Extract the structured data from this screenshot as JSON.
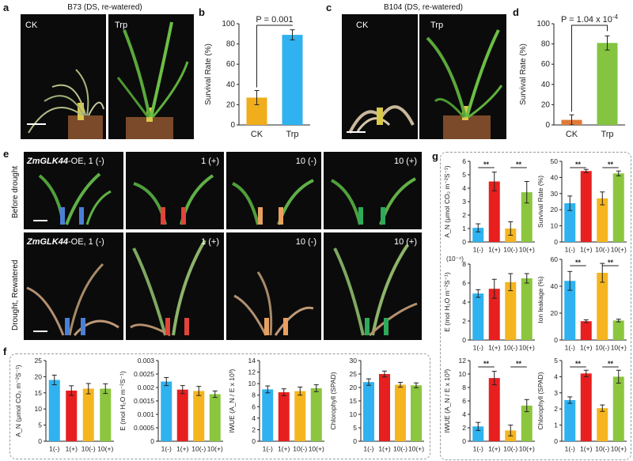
{
  "colors": {
    "ck": "#f0ad1c",
    "trp": "#2fb2ef",
    "d_ck": "#e07a3a",
    "d_trp": "#84c441",
    "s1m": "#2fb2ef",
    "s1p": "#e81f1f",
    "s10m": "#f5b51e",
    "s10p": "#8cc63f"
  },
  "panel_a": {
    "letter": "a",
    "title": "B73 (DS, re-watered)",
    "left_label": "CK",
    "right_label": "Trp"
  },
  "panel_c": {
    "letter": "c",
    "title": "B104 (DS, re-watered)",
    "left_label": "CK",
    "right_label": "Trp"
  },
  "panel_e": {
    "letter": "e",
    "row_labels": [
      "Before drought",
      "Drought, Rewatered"
    ],
    "genotype": "ZmGLK44",
    "suffix": "-OE, 1 (-)",
    "top_labels": [
      "1 (+)",
      "10 (-)",
      "10 (+)"
    ],
    "bottom_labels": [
      "1 (+)",
      "10 (-)",
      "10 (+)"
    ]
  },
  "panel_f_letter": "f",
  "panel_g_letter": "g",
  "chart_data": [
    {
      "id": "b",
      "letter": "b",
      "type": "bar",
      "categories": [
        "CK",
        "Trp"
      ],
      "values": [
        27,
        89
      ],
      "errors": [
        7,
        5
      ],
      "ylim": [
        0,
        100
      ],
      "yticks": [
        0,
        20,
        40,
        60,
        80,
        100
      ],
      "ylabel": "Survival Rate (%)",
      "annotation": "P = 0.001",
      "sig": true,
      "colors": [
        "#f0ad1c",
        "#2fb2ef"
      ]
    },
    {
      "id": "d",
      "letter": "d",
      "type": "bar",
      "categories": [
        "CK",
        "Trp"
      ],
      "values": [
        5,
        81
      ],
      "errors": [
        5,
        7
      ],
      "ylim": [
        0,
        100
      ],
      "yticks": [
        0,
        20,
        40,
        60,
        80,
        100
      ],
      "ylabel": "Survival Rate (%)",
      "annotation": "P = 1.04 x 10",
      "annotation_exp": "-4",
      "sig": true,
      "colors": [
        "#e07a3a",
        "#84c441"
      ]
    },
    {
      "id": "f1",
      "type": "bar",
      "categories": [
        "1(-)",
        "1(+)",
        "10(-)",
        "10(+)"
      ],
      "values": [
        19,
        15.7,
        16.3,
        16.3
      ],
      "errors": [
        1.5,
        1.5,
        1.6,
        1.5
      ],
      "ylim": [
        0,
        25
      ],
      "yticks": [
        0,
        5,
        10,
        15,
        20,
        25
      ],
      "ylabel": "A_N (μmol CO₂ m⁻²S⁻¹)",
      "colors": [
        "#2fb2ef",
        "#e81f1f",
        "#f5b51e",
        "#8cc63f"
      ]
    },
    {
      "id": "f2",
      "type": "bar",
      "categories": [
        "1(-)",
        "1(+)",
        "10(-)",
        "10(+)"
      ],
      "values": [
        0.00222,
        0.00192,
        0.00187,
        0.00175
      ],
      "errors": [
        0.00015,
        0.00015,
        0.00017,
        0.00012
      ],
      "ylim": [
        0,
        0.003
      ],
      "yticks": [
        0,
        0.0005,
        0.001,
        0.0015,
        0.002,
        0.0025,
        0.003
      ],
      "yticklabels": [
        "0",
        "0.0005",
        "0.001",
        "0.0015",
        "0.002",
        "0.0025",
        "0.003"
      ],
      "ylabel": "E (mol H₂O m⁻²S⁻¹)",
      "colors": [
        "#2fb2ef",
        "#e81f1f",
        "#f5b51e",
        "#8cc63f"
      ]
    },
    {
      "id": "f3",
      "type": "bar",
      "categories": [
        "1(-)",
        "1(+)",
        "10(-)",
        "10(+)"
      ],
      "values": [
        9,
        8.5,
        8.7,
        9.2
      ],
      "errors": [
        0.6,
        0.6,
        0.7,
        0.6
      ],
      "ylim": [
        0,
        14
      ],
      "yticks": [
        0,
        2,
        4,
        6,
        8,
        10,
        12,
        14
      ],
      "ylabel": "IWUE (A_N / E x 10³)",
      "colors": [
        "#2fb2ef",
        "#e81f1f",
        "#f5b51e",
        "#8cc63f"
      ]
    },
    {
      "id": "f4",
      "type": "bar",
      "categories": [
        "1(-)",
        "1(+)",
        "10(-)",
        "10(+)"
      ],
      "values": [
        22,
        25,
        21,
        20.8
      ],
      "errors": [
        1.2,
        1.1,
        0.9,
        0.9
      ],
      "ylim": [
        0,
        30
      ],
      "yticks": [
        0,
        5,
        10,
        15,
        20,
        25,
        30
      ],
      "ylabel": "Chlorophyll (SPAD)",
      "colors": [
        "#2fb2ef",
        "#e81f1f",
        "#f5b51e",
        "#8cc63f"
      ]
    },
    {
      "id": "g1",
      "type": "bar",
      "categories": [
        "1(-)",
        "1(+)",
        "10(-)",
        "10(+)"
      ],
      "values": [
        1.05,
        4.5,
        1,
        3.7
      ],
      "errors": [
        0.3,
        0.7,
        0.5,
        0.8
      ],
      "ylim": [
        0,
        6
      ],
      "yticks": [
        0,
        1,
        2,
        3,
        4,
        5,
        6
      ],
      "ylabel": "A_N (μmol CO₂ m⁻²S⁻¹)",
      "sig_pairs": [
        [
          0,
          1
        ],
        [
          2,
          3
        ]
      ],
      "colors": [
        "#2fb2ef",
        "#e81f1f",
        "#f5b51e",
        "#8cc63f"
      ]
    },
    {
      "id": "g2",
      "type": "bar",
      "categories": [
        "1(-)",
        "1(+)",
        "10(-)",
        "10(+)"
      ],
      "values": [
        24,
        44,
        27,
        42.5
      ],
      "errors": [
        4.5,
        1,
        4,
        1.5
      ],
      "ylim": [
        0,
        50
      ],
      "yticks": [
        0,
        10,
        20,
        30,
        40,
        50
      ],
      "ylabel": "Survival Rate (%)",
      "sig_pairs": [
        [
          0,
          1
        ],
        [
          2,
          3
        ]
      ],
      "colors": [
        "#2fb2ef",
        "#e81f1f",
        "#f5b51e",
        "#8cc63f"
      ]
    },
    {
      "id": "g3",
      "type": "bar",
      "categories": [
        "1(-)",
        "1(+)",
        "10(-)",
        "10(+)"
      ],
      "values": [
        4.9,
        5.4,
        6.1,
        6.5
      ],
      "errors": [
        0.4,
        1,
        0.9,
        0.5
      ],
      "ylim": [
        0,
        8
      ],
      "yticks": [
        0,
        2,
        4,
        6,
        8
      ],
      "ylabel": "E (mol H₂O m⁻²S⁻¹)",
      "scale_note": "(10⁻⁴)",
      "colors": [
        "#2fb2ef",
        "#e81f1f",
        "#f5b51e",
        "#8cc63f"
      ]
    },
    {
      "id": "g4",
      "type": "bar",
      "categories": [
        "1(-)",
        "1(+)",
        "10(-)",
        "10(+)"
      ],
      "values": [
        44,
        14,
        50,
        14.5
      ],
      "errors": [
        7,
        1,
        7,
        1
      ],
      "ylim": [
        0,
        60
      ],
      "yticks": [
        0,
        20,
        40,
        60
      ],
      "ylabel": "Ion leakage (%)",
      "sig_pairs": [
        [
          0,
          1
        ],
        [
          2,
          3
        ]
      ],
      "colors": [
        "#2fb2ef",
        "#e81f1f",
        "#f5b51e",
        "#8cc63f"
      ]
    },
    {
      "id": "g5",
      "type": "bar",
      "categories": [
        "1(-)",
        "1(+)",
        "10(-)",
        "10(+)"
      ],
      "values": [
        2.2,
        9.4,
        1.6,
        5.3
      ],
      "errors": [
        0.6,
        1,
        0.8,
        0.9
      ],
      "ylim": [
        0,
        12
      ],
      "yticks": [
        0,
        2,
        4,
        6,
        8,
        10,
        12
      ],
      "ylabel": "IWUE (A_N / E x 10³)",
      "sig_pairs": [
        [
          0,
          1
        ],
        [
          2,
          3
        ]
      ],
      "colors": [
        "#2fb2ef",
        "#e81f1f",
        "#f5b51e",
        "#8cc63f"
      ]
    },
    {
      "id": "g6",
      "type": "bar",
      "categories": [
        "1(-)",
        "1(+)",
        "10(-)",
        "10(+)"
      ],
      "values": [
        2.55,
        4.2,
        2.05,
        4
      ],
      "errors": [
        0.2,
        0.2,
        0.2,
        0.4
      ],
      "ylim": [
        0,
        5
      ],
      "yticks": [
        0,
        1,
        2,
        3,
        4,
        5
      ],
      "ylabel": "Chlorophyll (SPAD)",
      "sig_pairs": [
        [
          0,
          1
        ],
        [
          2,
          3
        ]
      ],
      "colors": [
        "#2fb2ef",
        "#e81f1f",
        "#f5b51e",
        "#8cc63f"
      ]
    }
  ]
}
